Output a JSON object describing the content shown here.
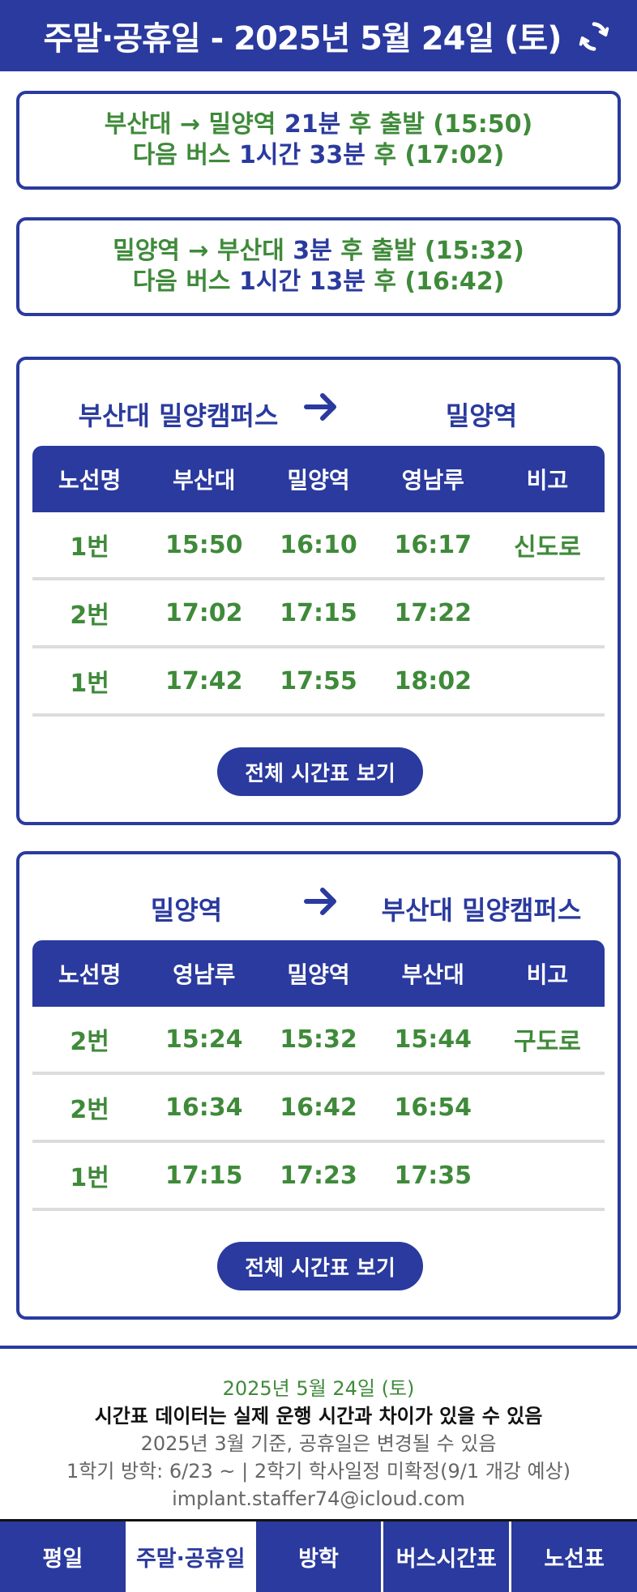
{
  "header": {
    "title": "주말·공휴일 - 2025년 5월 24일 (토)"
  },
  "summaries": [
    {
      "route": "부산대 → 밀양역",
      "minutes": "21분",
      "depart": "후 출발 (15:50)",
      "next_prefix": "다음 버스",
      "next_wait": "1시간 33분",
      "next_suffix": "후 (17:02)"
    },
    {
      "route": "밀양역 → 부산대",
      "minutes": "3분",
      "depart": "후 출발 (15:32)",
      "next_prefix": "다음 버스",
      "next_wait": "1시간 13분",
      "next_suffix": "후 (16:42)"
    }
  ],
  "cards": [
    {
      "from": "부산대 밀양캠퍼스",
      "to": "밀양역",
      "headers": [
        "노선명",
        "부산대",
        "밀양역",
        "영남루",
        "비고"
      ],
      "rows": [
        [
          "1번",
          "15:50",
          "16:10",
          "16:17",
          "신도로"
        ],
        [
          "2번",
          "17:02",
          "17:15",
          "17:22",
          ""
        ],
        [
          "1번",
          "17:42",
          "17:55",
          "18:02",
          ""
        ]
      ],
      "button": "전체 시간표 보기"
    },
    {
      "from": "밀양역",
      "to": "부산대 밀양캠퍼스",
      "headers": [
        "노선명",
        "영남루",
        "밀양역",
        "부산대",
        "비고"
      ],
      "rows": [
        [
          "2번",
          "15:24",
          "15:32",
          "15:44",
          "구도로"
        ],
        [
          "2번",
          "16:34",
          "16:42",
          "16:54",
          ""
        ],
        [
          "1번",
          "17:15",
          "17:23",
          "17:35",
          ""
        ]
      ],
      "button": "전체 시간표 보기"
    }
  ],
  "footer": {
    "date": "2025년 5월 24일 (토)",
    "warning": "시간표 데이터는 실제 운행 시간과 차이가 있을 수 있음",
    "basis": "2025년 3월 기준, 공휴일은 변경될 수 있음",
    "semester": "1학기 방학: 6/23 ~ | 2학기 학사일정 미확정(9/1 개강 예상)",
    "email": "implant.staffer74@icloud.com"
  },
  "nav": [
    "평일",
    "주말·공휴일",
    "방학",
    "버스시간표",
    "노선표"
  ],
  "nav_active": 1,
  "icons": {
    "refresh": "refresh-icon",
    "arrow": "arrow-right-icon"
  },
  "colors": {
    "primary": "#2a3a9e",
    "accent_green": "#3f8a3a"
  }
}
